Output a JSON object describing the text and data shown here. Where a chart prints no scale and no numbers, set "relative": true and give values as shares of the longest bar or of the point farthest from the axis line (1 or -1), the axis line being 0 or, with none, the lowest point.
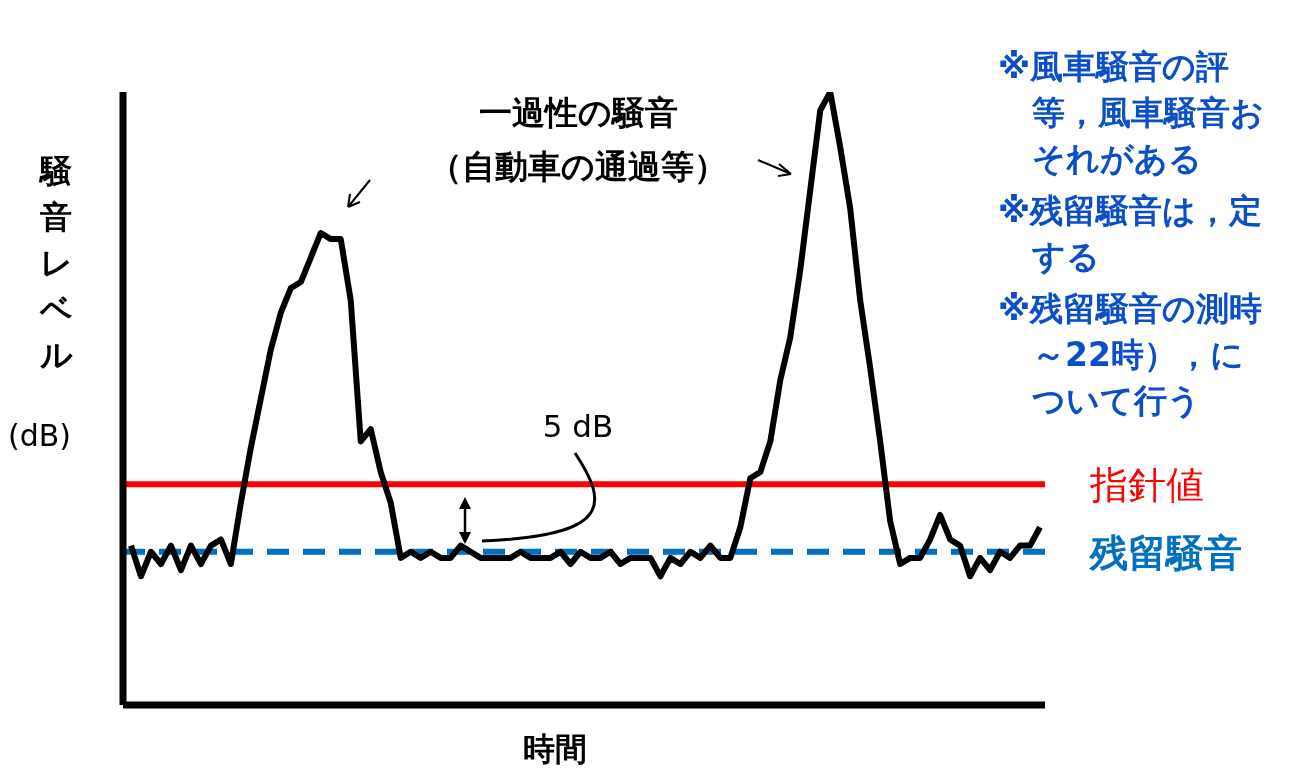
{
  "chart_data": {
    "type": "line",
    "relative": true,
    "xlabel": "時間",
    "ylabel": "騒音レベル (dB)",
    "categories": [
      null,
      null,
      null,
      null,
      null,
      null,
      null,
      null,
      null,
      null,
      null,
      null,
      null,
      null,
      null,
      null,
      null,
      null,
      null,
      null,
      null,
      null,
      null,
      null,
      null,
      null,
      null,
      null,
      null,
      null,
      null,
      null,
      null,
      null,
      null,
      null,
      null,
      null,
      null,
      null,
      null,
      null,
      null,
      null,
      null,
      null,
      null,
      null,
      null,
      null,
      null,
      null,
      null,
      null,
      null,
      null,
      null,
      null,
      null,
      null,
      null,
      null,
      null,
      null,
      null,
      null,
      null,
      null,
      null,
      null,
      null,
      null,
      null,
      null,
      null,
      null,
      null,
      null,
      null,
      null,
      null,
      null,
      null,
      null,
      null,
      null,
      null,
      null,
      null,
      null,
      null,
      null
    ],
    "series": [
      {
        "color": "#000000",
        "values": [
          0.26,
          0.21,
          0.25,
          0.23,
          0.26,
          0.22,
          0.26,
          0.23,
          0.26,
          0.27,
          0.23,
          0.33,
          0.42,
          0.5,
          0.58,
          0.64,
          0.68,
          0.69,
          0.73,
          0.77,
          0.76,
          0.76,
          0.66,
          0.43,
          0.45,
          0.38,
          0.33,
          0.24,
          0.25,
          0.24,
          0.25,
          0.24,
          0.24,
          0.26,
          0.25,
          0.24,
          0.24,
          0.24,
          0.24,
          0.25,
          0.24,
          0.24,
          0.24,
          0.25,
          0.23,
          0.25,
          0.24,
          0.24,
          0.25,
          0.23,
          0.24,
          0.24,
          0.24,
          0.21,
          0.24,
          0.23,
          0.25,
          0.24,
          0.26,
          0.24,
          0.24,
          0.29,
          0.37,
          0.38,
          0.43,
          0.53,
          0.6,
          0.71,
          0.84,
          0.97,
          1,
          0.91,
          0.81,
          0.66,
          0.55,
          0.43,
          0.3,
          0.23,
          0.24,
          0.24,
          0.27,
          0.31,
          0.27,
          0.26,
          0.21,
          0.24,
          0.22,
          0.25,
          0.24,
          0.26,
          0.26,
          0.29
        ]
      }
    ],
    "ref_lines": [
      {
        "axis": "y",
        "value": 0.36,
        "label": "指針値",
        "color": "#ff0000",
        "line_style": "solid"
      },
      {
        "axis": "y",
        "value": 0.25,
        "label": "残留騒音",
        "color": "#0070c0",
        "line_style": "dashed"
      }
    ],
    "annotations": [
      "一過性の騒音",
      "（自動車の通過等）",
      "5 dB",
      "※風車騒音の評等，風車騒音おそれがある",
      "※残留騒音は，定する",
      "※残留騒音の測時～22時），について行う"
    ],
    "legend": false,
    "grid": false
  }
}
